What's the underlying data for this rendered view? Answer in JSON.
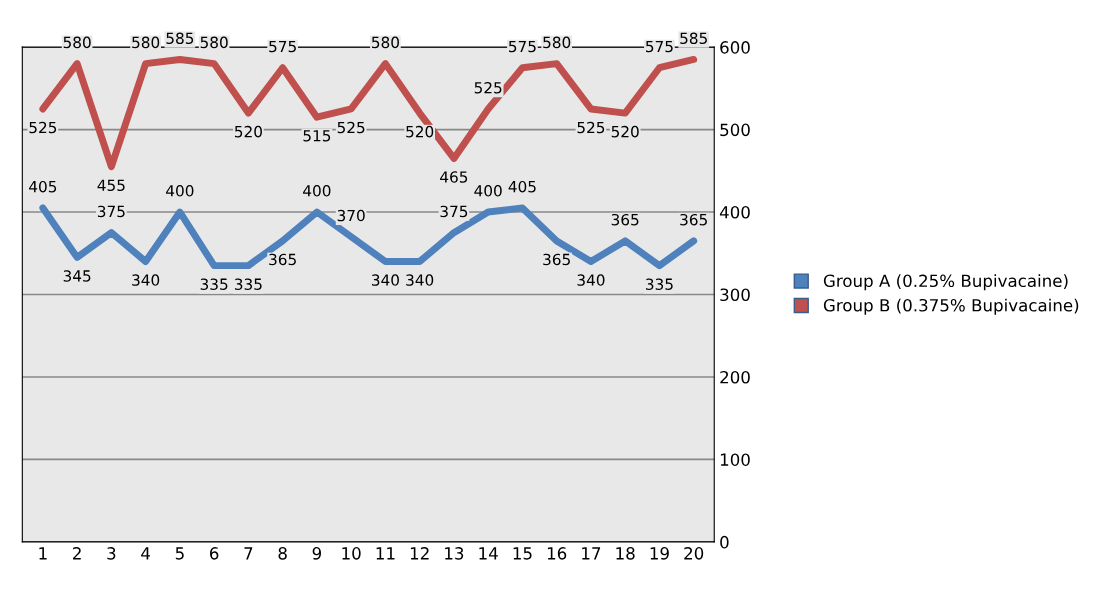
{
  "chart_data": {
    "type": "line",
    "categories": [
      "1",
      "2",
      "3",
      "4",
      "5",
      "6",
      "7",
      "8",
      "9",
      "10",
      "11",
      "12",
      "13",
      "14",
      "15",
      "16",
      "17",
      "18",
      "19",
      "20"
    ],
    "series": [
      {
        "name": "Group A (0.25% Bupivacaine)",
        "color": "#4f81bd",
        "values": [
          405,
          345,
          375,
          340,
          400,
          335,
          335,
          365,
          400,
          370,
          340,
          340,
          375,
          400,
          405,
          365,
          340,
          365,
          335,
          365
        ]
      },
      {
        "name": "Group B (0.375% Bupivacaine)",
        "color": "#c0504d",
        "values": [
          525,
          580,
          455,
          580,
          585,
          580,
          520,
          575,
          515,
          525,
          580,
          520,
          465,
          525,
          575,
          580,
          525,
          520,
          575,
          585
        ]
      }
    ],
    "ylim": [
      0,
      600
    ],
    "yticks": [
      0,
      100,
      200,
      300,
      400,
      500,
      600
    ],
    "grid": "y",
    "legend": "right",
    "data_labels": true
  }
}
